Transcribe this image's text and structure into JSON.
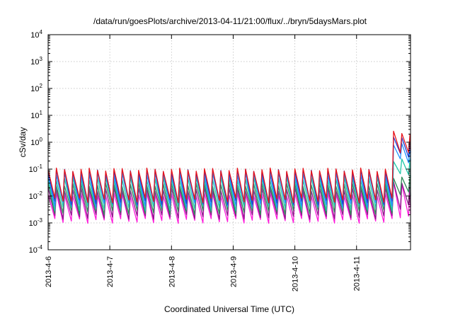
{
  "chart_data": {
    "type": "line",
    "title": "/data/run/goesPlots/archive/2013-04-11/21:00/flux/../bryn/5daysMars.plot",
    "xlabel": "Coordinated Universal Time (UTC)",
    "ylabel": "cSv/day",
    "yscale": "log",
    "ylim_exponents": [
      -4,
      4
    ],
    "y_tick_base": "10",
    "y_ticks": [
      {
        "exp": "-4"
      },
      {
        "exp": "-3"
      },
      {
        "exp": "-2"
      },
      {
        "exp": "-1"
      },
      {
        "exp": "0"
      },
      {
        "exp": "1"
      },
      {
        "exp": "2"
      },
      {
        "exp": "3"
      },
      {
        "exp": "4"
      }
    ],
    "x_range": [
      "2013-04-06",
      "2013-04-11 21:00"
    ],
    "x_ticks": [
      "2013-4-6",
      "2013-4-7",
      "2013-4-8",
      "2013-4-9",
      "2013-4-10",
      "2013-4-11"
    ],
    "grid": true,
    "legend": "none",
    "pattern": {
      "cycles_per_day": 7.5,
      "event_start_day": 5.55
    },
    "series": [
      {
        "color": "#e8141c",
        "quiet": {
          "peak": 0.11,
          "trough": 0.007
        },
        "event": {
          "peak": 2.6,
          "trough": 0.45
        }
      },
      {
        "color": "#1f3fd8",
        "quiet": {
          "peak": 0.1,
          "trough": 0.006
        },
        "event": {
          "peak": 1.6,
          "trough": 0.35
        }
      },
      {
        "color": "#1e90ff",
        "quiet": {
          "peak": 0.075,
          "trough": 0.0048
        },
        "event": {
          "peak": 0.9,
          "trough": 0.2
        }
      },
      {
        "color": "#20c8a8",
        "quiet": {
          "peak": 0.05,
          "trough": 0.0035
        },
        "event": {
          "peak": 0.25,
          "trough": 0.06
        }
      },
      {
        "color": "#2e8b57",
        "quiet": {
          "peak": 0.03,
          "trough": 0.0025
        },
        "event": {
          "peak": 0.06,
          "trough": 0.012
        }
      },
      {
        "color": "#8b1a8b",
        "quiet": {
          "peak": 0.02,
          "trough": 0.0017
        },
        "event": {
          "peak": 0.04,
          "trough": 0.004
        }
      },
      {
        "color": "#ff1adb",
        "quiet": {
          "peak": 0.013,
          "trough": 0.0012
        },
        "event": {
          "peak": 0.035,
          "trough": 0.0018
        }
      }
    ]
  }
}
